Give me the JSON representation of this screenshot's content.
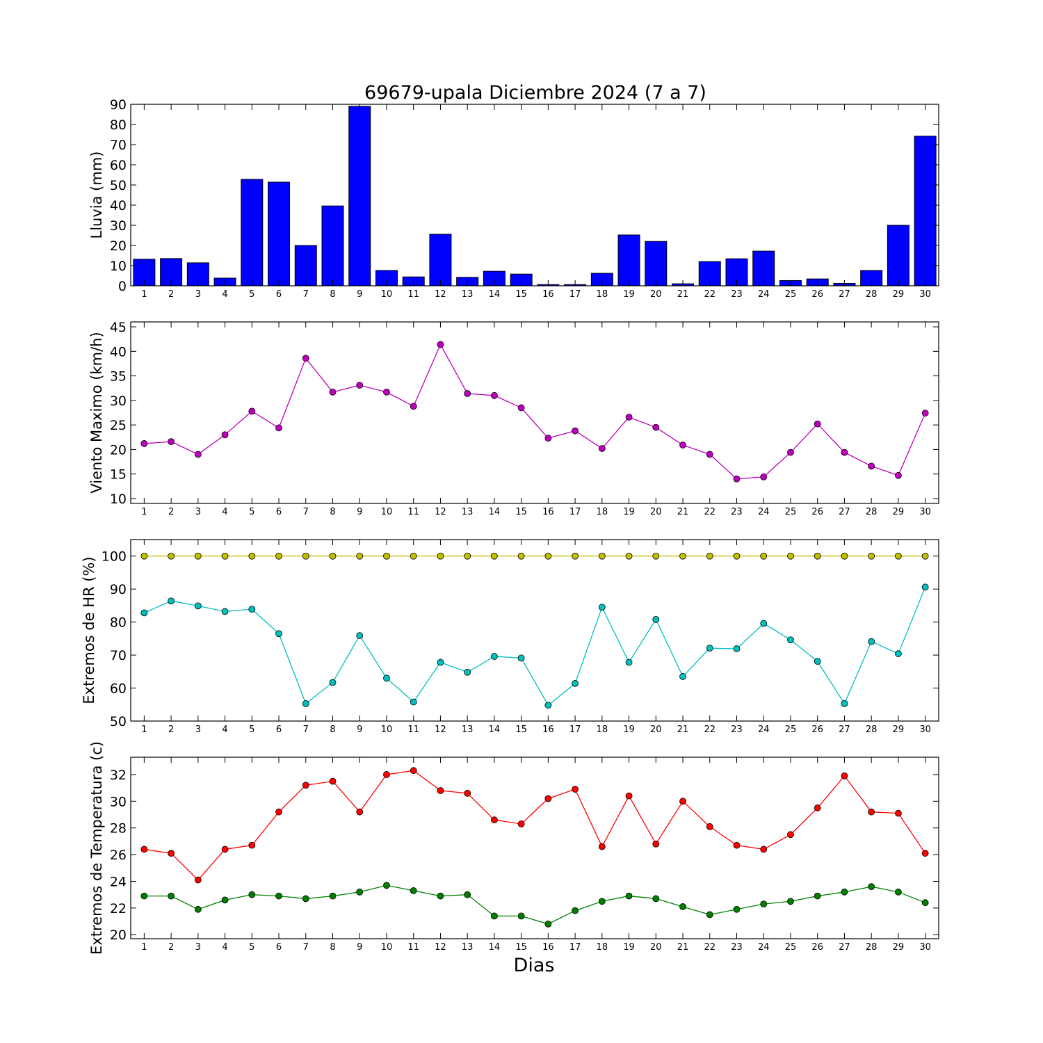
{
  "chart_data": {
    "title": "69679-upala Diciembre 2024  (7 a 7)",
    "xlabel": "Dias",
    "x": [
      1,
      2,
      3,
      4,
      5,
      6,
      7,
      8,
      9,
      10,
      11,
      12,
      13,
      14,
      15,
      16,
      17,
      18,
      19,
      20,
      21,
      22,
      23,
      24,
      25,
      26,
      27,
      28,
      29,
      30
    ],
    "panels": [
      {
        "type": "bar",
        "ylabel": "Lluvia (mm)",
        "ylim": [
          0,
          90
        ],
        "yticks": [
          0,
          10,
          20,
          30,
          40,
          50,
          60,
          70,
          80,
          90
        ],
        "series": [
          {
            "color": "#0000ff",
            "values": [
              13.2,
              13.5,
              11.4,
              3.8,
              52.8,
              51.4,
              20.0,
              39.6,
              89.0,
              7.6,
              4.4,
              25.6,
              4.2,
              7.2,
              5.8,
              0.6,
              0.6,
              6.2,
              25.2,
              22.0,
              1.0,
              12.0,
              13.4,
              17.2,
              2.6,
              3.4,
              1.2,
              7.6,
              30.0,
              74.2
            ]
          }
        ]
      },
      {
        "type": "line",
        "ylabel": "Viento Maximo (km/h)",
        "ylim": [
          9,
          46
        ],
        "yticks": [
          10,
          15,
          20,
          25,
          30,
          35,
          40,
          45
        ],
        "series": [
          {
            "color": "#bf00bf",
            "values": [
              21.2,
              21.6,
              19.0,
              23.0,
              27.8,
              24.4,
              38.6,
              31.7,
              33.1,
              31.7,
              28.8,
              41.4,
              31.4,
              31.0,
              28.5,
              22.3,
              23.8,
              20.2,
              26.6,
              24.5,
              20.9,
              19.0,
              14.0,
              14.4,
              19.4,
              25.2,
              19.4,
              16.6,
              14.7,
              27.4
            ]
          }
        ]
      },
      {
        "type": "line",
        "ylabel": "Extremos de HR (%)",
        "ylim": [
          50,
          105
        ],
        "yticks": [
          50,
          60,
          70,
          80,
          90,
          100
        ],
        "series": [
          {
            "color": "#bfbf00",
            "values": [
              100,
              100,
              100,
              100,
              100,
              100,
              100,
              100,
              100,
              100,
              100,
              100,
              100,
              100,
              100,
              100,
              100,
              100,
              100,
              100,
              100,
              100,
              100,
              100,
              100,
              100,
              100,
              100,
              100,
              100
            ]
          },
          {
            "color": "#00bfbf",
            "values": [
              82.8,
              86.4,
              84.9,
              83.2,
              83.9,
              76.5,
              55.3,
              61.7,
              75.9,
              63.0,
              55.8,
              67.8,
              64.8,
              69.6,
              69.1,
              54.8,
              61.4,
              84.5,
              67.8,
              80.8,
              63.5,
              72.1,
              71.9,
              79.6,
              74.6,
              68.1,
              55.3,
              74.1,
              70.4,
              90.6
            ]
          }
        ]
      },
      {
        "type": "line",
        "ylabel": "Extremos de Temperatura (c)",
        "ylim": [
          19.7,
          33.3
        ],
        "yticks": [
          20,
          22,
          24,
          26,
          28,
          30,
          32
        ],
        "series": [
          {
            "color": "#ff0000",
            "values": [
              26.4,
              26.1,
              24.1,
              26.4,
              26.7,
              29.2,
              31.2,
              31.5,
              29.2,
              32.0,
              32.3,
              30.8,
              30.6,
              28.6,
              28.3,
              30.2,
              30.9,
              26.6,
              30.4,
              26.8,
              30.0,
              28.1,
              26.7,
              26.4,
              27.5,
              29.5,
              31.9,
              29.2,
              29.1,
              26.1
            ]
          },
          {
            "color": "#007f00",
            "values": [
              22.9,
              22.9,
              21.9,
              22.6,
              23.0,
              22.9,
              22.7,
              22.9,
              23.2,
              23.7,
              23.3,
              22.9,
              23.0,
              21.4,
              21.4,
              20.8,
              21.8,
              22.5,
              22.9,
              22.7,
              22.1,
              21.5,
              21.9,
              22.3,
              22.5,
              22.9,
              23.2,
              23.6,
              23.2,
              22.4
            ]
          }
        ]
      }
    ]
  }
}
